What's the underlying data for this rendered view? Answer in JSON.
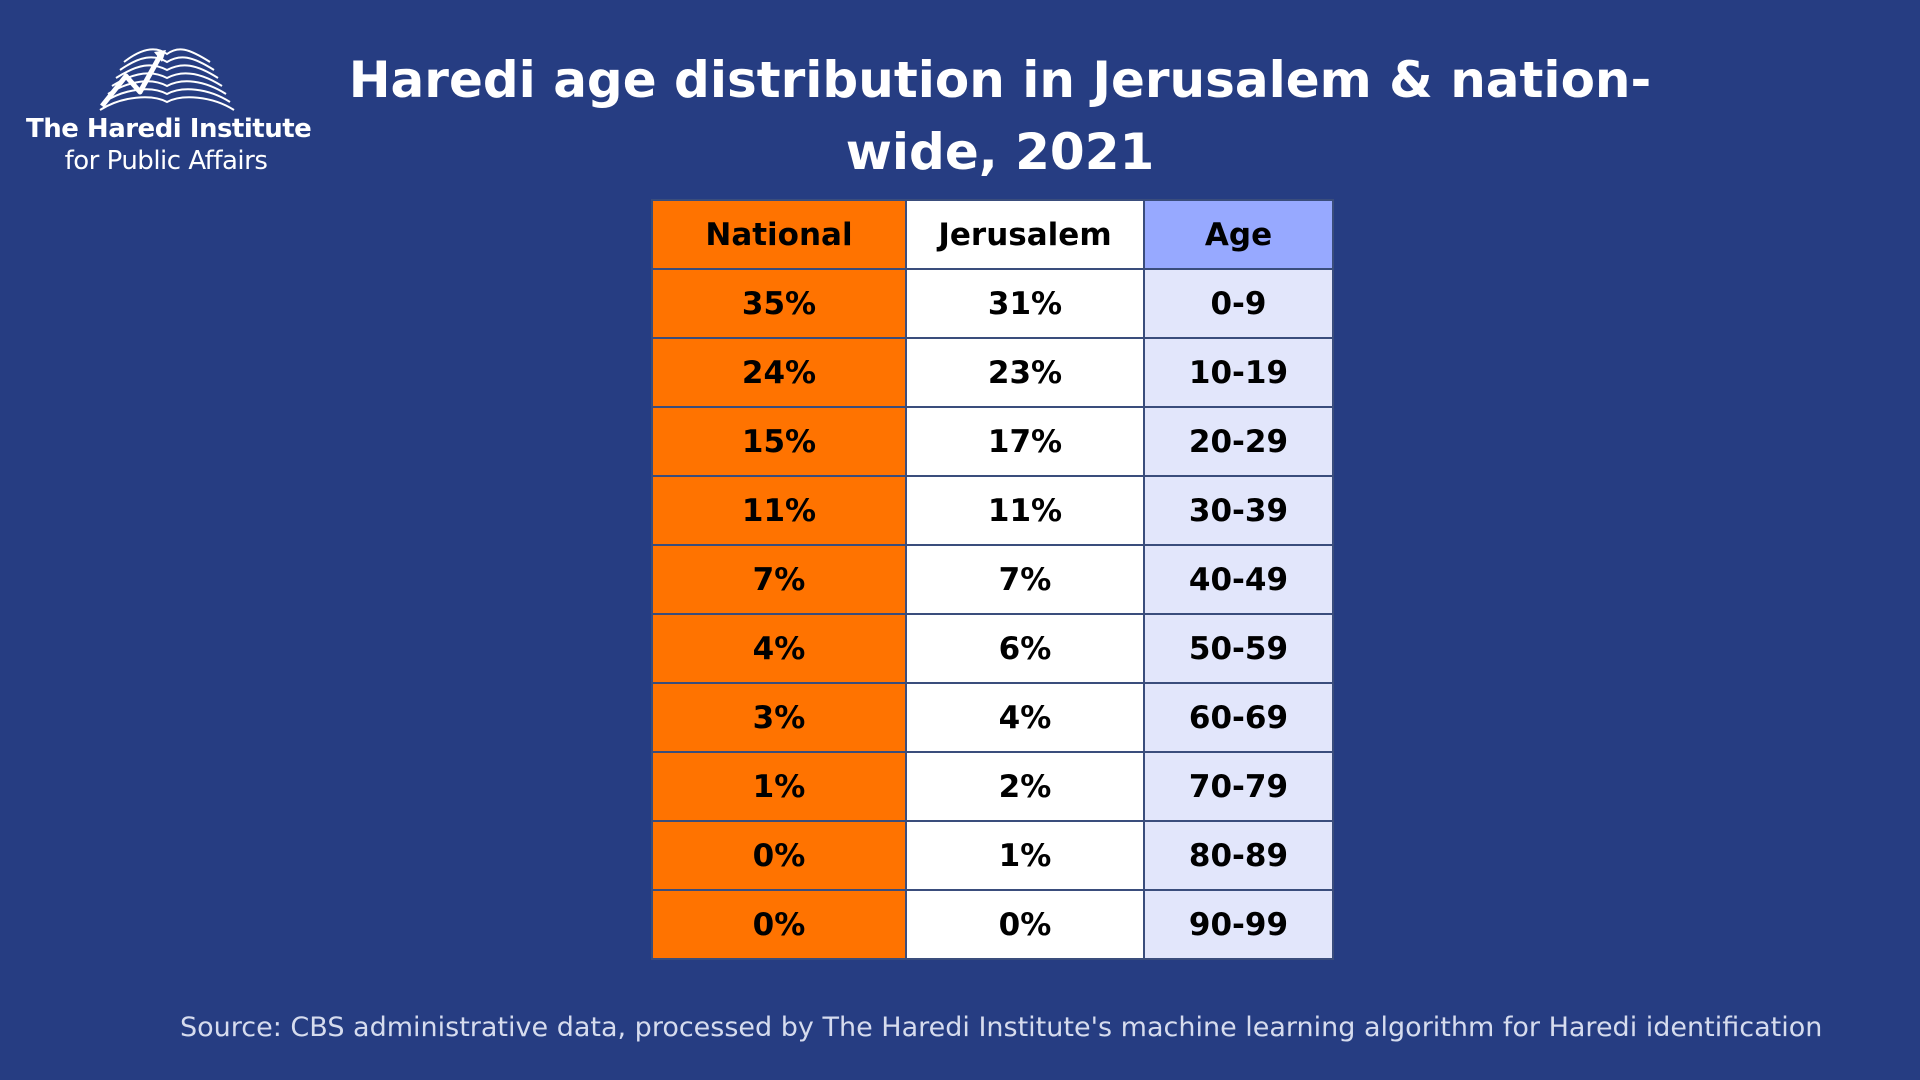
{
  "logo": {
    "name_line1": "The Haredi Institute",
    "name_line2": "for Public Affairs",
    "icon": "open-book-chart-icon"
  },
  "title": "Haredi age distribution in Jerusalem & nation-wide, 2021",
  "table": {
    "headers": [
      "National",
      "Jerusalem",
      "Age"
    ],
    "rows": [
      [
        "35%",
        "31%",
        "0-9"
      ],
      [
        "24%",
        "23%",
        "10-19"
      ],
      [
        "15%",
        "17%",
        "20-29"
      ],
      [
        "11%",
        "11%",
        "30-39"
      ],
      [
        "7%",
        "7%",
        "40-49"
      ],
      [
        "4%",
        "6%",
        "50-59"
      ],
      [
        "3%",
        "4%",
        "60-69"
      ],
      [
        "1%",
        "2%",
        "70-79"
      ],
      [
        "0%",
        "1%",
        "80-89"
      ],
      [
        "0%",
        "0%",
        "90-99"
      ]
    ]
  },
  "colors": {
    "background": "#263d82",
    "national": "#ff7300",
    "jerusalem": "#ffffff",
    "age_header": "#97a9ff",
    "age_cells": "#e2e6fb"
  },
  "source": "Source: CBS administrative data, processed by The Haredi Institute's machine learning algorithm for Haredi identification",
  "chart_data": {
    "type": "table",
    "title": "Haredi age distribution in Jerusalem & nation-wide, 2021",
    "columns": [
      "National",
      "Jerusalem",
      "Age"
    ],
    "categories": [
      "0-9",
      "10-19",
      "20-29",
      "30-39",
      "40-49",
      "50-59",
      "60-69",
      "70-79",
      "80-89",
      "90-99"
    ],
    "series": [
      {
        "name": "National",
        "values": [
          35,
          24,
          15,
          11,
          7,
          4,
          3,
          1,
          0,
          0
        ]
      },
      {
        "name": "Jerusalem",
        "values": [
          31,
          23,
          17,
          11,
          7,
          6,
          4,
          2,
          1,
          0
        ]
      }
    ],
    "unit": "%"
  }
}
